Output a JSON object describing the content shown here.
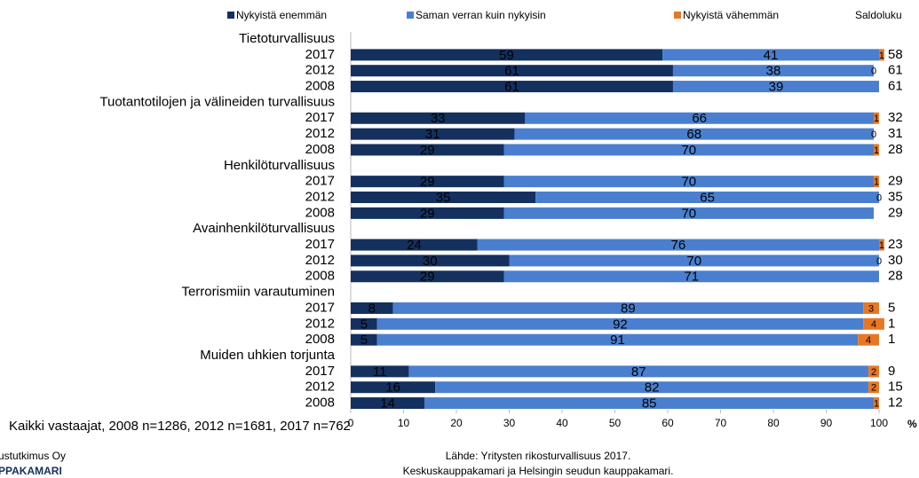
{
  "chart_data": {
    "type": "stacked-barh",
    "groups": [
      {
        "name": "Tietoturvallisuus",
        "categories": [
          "2017",
          "2012",
          "2008"
        ]
      },
      {
        "name": "Tuotantotilojen ja välineiden turvallisuus",
        "categories": [
          "2017",
          "2012",
          "2008"
        ]
      },
      {
        "name": "Henkilöturvallisuus",
        "categories": [
          "2017",
          "2012",
          "2008"
        ]
      },
      {
        "name": "Avainhenkilöturvallisuus",
        "categories": [
          "2017",
          "2012",
          "2008"
        ]
      },
      {
        "name": "Terrorismiin varautuminen",
        "categories": [
          "2017",
          "2012",
          "2008"
        ]
      },
      {
        "name": "Muiden uhkien torjunta",
        "categories": [
          "2017",
          "2012",
          "2008"
        ]
      }
    ],
    "series": [
      {
        "name": "Nykyistä enemmän",
        "color": "#14305e",
        "values": [
          59,
          61,
          61,
          33,
          31,
          29,
          29,
          35,
          29,
          24,
          30,
          29,
          8,
          5,
          5,
          11,
          16,
          14
        ]
      },
      {
        "name": "Saman verran kuin nykyisin",
        "color": "#4a7fcf",
        "values": [
          41,
          38,
          39,
          66,
          68,
          70,
          70,
          65,
          70,
          76,
          70,
          71,
          89,
          92,
          91,
          87,
          82,
          85
        ]
      },
      {
        "name": "Nykyistä vähemmän",
        "color": "#e87722",
        "values": [
          1,
          0,
          null,
          1,
          0,
          1,
          1,
          0,
          null,
          1,
          0,
          null,
          3,
          4,
          4,
          2,
          2,
          1
        ]
      }
    ],
    "saldo": {
      "name": "Saldoluku",
      "values": [
        58,
        61,
        61,
        32,
        31,
        28,
        29,
        35,
        29,
        23,
        30,
        28,
        5,
        1,
        1,
        9,
        15,
        12
      ]
    },
    "xlim": [
      0,
      100
    ],
    "xticks": [
      0,
      10,
      20,
      30,
      40,
      50,
      60,
      70,
      80,
      90,
      100
    ],
    "xunit": "%",
    "note": "Kaikki vastaajat, 2008 n=1286, 2012 n=1681, 2017 n=762",
    "source": [
      "Lähde: Yritysten rikosturvallisuus 2017.",
      "Keskuskauppakamari ja Helsingin seudun kauppakamari."
    ],
    "logo": [
      "ustutkimus Oy",
      "PPAKAMARI"
    ]
  }
}
